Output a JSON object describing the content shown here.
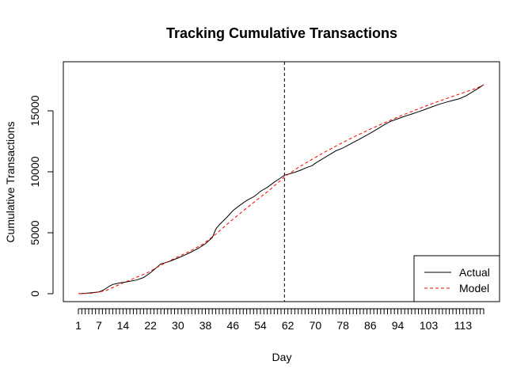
{
  "chart_data": {
    "type": "line",
    "title": "Tracking Cumulative Transactions",
    "xlabel": "Day",
    "ylabel": "Cumulative Transactions",
    "xlim": [
      1,
      119
    ],
    "ylim": [
      0,
      17400
    ],
    "x_tick_labels": [
      "1",
      "7",
      "14",
      "22",
      "30",
      "38",
      "46",
      "54",
      "62",
      "70",
      "78",
      "86",
      "94",
      "103",
      "113"
    ],
    "x_tick_positions": [
      1,
      7,
      14,
      22,
      30,
      38,
      46,
      54,
      62,
      70,
      78,
      86,
      94,
      103,
      113
    ],
    "x_minor_ticks_every_day": true,
    "y_ticks": [
      0,
      5000,
      10000,
      15000
    ],
    "y_tick_labels": [
      "0",
      "5000",
      "10000",
      "15000"
    ],
    "vline": {
      "x": 61,
      "style": "dashed",
      "color": "#000000"
    },
    "legend": {
      "position": "bottom-right"
    },
    "series": [
      {
        "name": "Actual",
        "color": "#000000",
        "dash": "solid",
        "x": [
          1,
          3,
          5,
          7,
          8,
          9,
          10,
          11,
          12,
          13,
          14,
          15,
          16,
          18,
          20,
          22,
          24,
          25,
          26,
          27,
          28,
          30,
          32,
          34,
          36,
          38,
          40,
          41,
          42,
          44,
          46,
          48,
          50,
          52,
          53,
          54,
          56,
          58,
          60,
          61,
          62,
          64,
          66,
          67,
          68,
          69,
          70,
          72,
          74,
          76,
          78,
          80,
          82,
          84,
          86,
          88,
          90,
          92,
          94,
          96,
          98,
          100,
          102,
          104,
          106,
          108,
          110,
          112,
          114,
          116,
          118,
          119
        ],
        "y": [
          0,
          30,
          80,
          150,
          260,
          420,
          620,
          760,
          820,
          880,
          920,
          970,
          1020,
          1120,
          1330,
          1720,
          2200,
          2450,
          2520,
          2600,
          2700,
          2930,
          3170,
          3440,
          3730,
          4100,
          4600,
          5300,
          5650,
          6200,
          6820,
          7250,
          7650,
          7950,
          8150,
          8400,
          8720,
          9140,
          9520,
          9720,
          9800,
          9960,
          10160,
          10300,
          10400,
          10500,
          10700,
          11050,
          11380,
          11720,
          11950,
          12250,
          12550,
          12850,
          13170,
          13500,
          13850,
          14150,
          14350,
          14550,
          14730,
          14920,
          15120,
          15330,
          15530,
          15700,
          15850,
          16000,
          16250,
          16600,
          16950,
          17150
        ]
      },
      {
        "name": "Model",
        "color": "#ff0000",
        "dash": "dashed",
        "x": [
          1,
          5,
          9,
          13,
          17,
          21,
          25,
          29,
          33,
          37,
          41,
          45,
          49,
          53,
          57,
          61,
          65,
          69,
          73,
          77,
          81,
          85,
          89,
          93,
          97,
          101,
          105,
          109,
          113,
          117,
          119
        ],
        "y": [
          0,
          40,
          250,
          760,
          1240,
          1700,
          2340,
          2900,
          3420,
          4010,
          4880,
          5870,
          6800,
          7700,
          8580,
          9580,
          10350,
          11020,
          11660,
          12260,
          12830,
          13370,
          13880,
          14370,
          14830,
          15270,
          15690,
          16090,
          16480,
          16860,
          17130
        ]
      }
    ]
  }
}
